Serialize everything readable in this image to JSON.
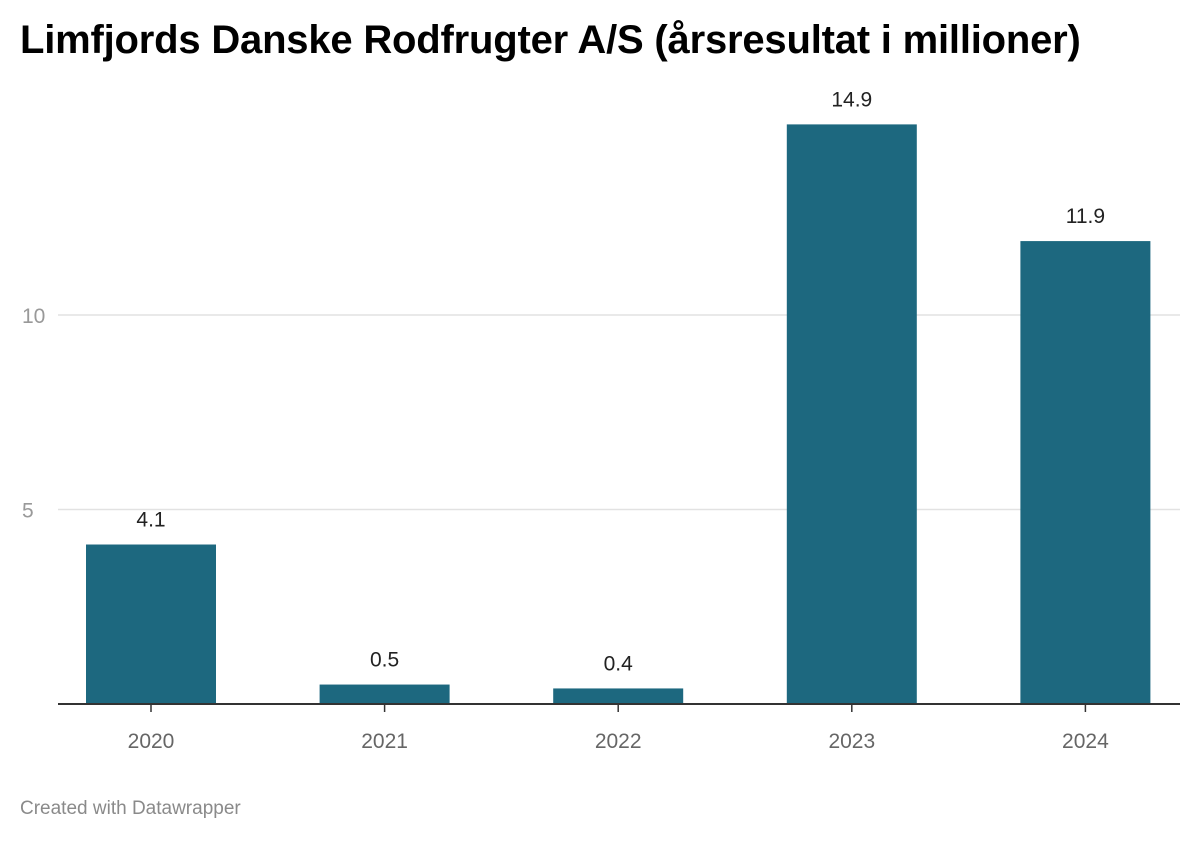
{
  "title": "Limfjords Danske Rodfrugter A/S (årsresultat i millioner)",
  "footer": "Created with Datawrapper",
  "colors": {
    "bar": "#1d687f",
    "grid": "#e2e2e2",
    "axis": "#333333"
  },
  "chart_data": {
    "type": "bar",
    "title": "Limfjords Danske Rodfrugter A/S (årsresultat i millioner)",
    "categories": [
      "2020",
      "2021",
      "2022",
      "2023",
      "2024"
    ],
    "values": [
      4.1,
      0.5,
      0.4,
      14.9,
      11.9
    ],
    "value_labels": [
      "4.1",
      "0.5",
      "0.4",
      "14.9",
      "11.9"
    ],
    "yticks": [
      5,
      10
    ],
    "ytick_labels": [
      "5",
      "10"
    ],
    "ylim": [
      0,
      15
    ],
    "xlabel": "",
    "ylabel": "",
    "grid": true,
    "legend": "none"
  }
}
